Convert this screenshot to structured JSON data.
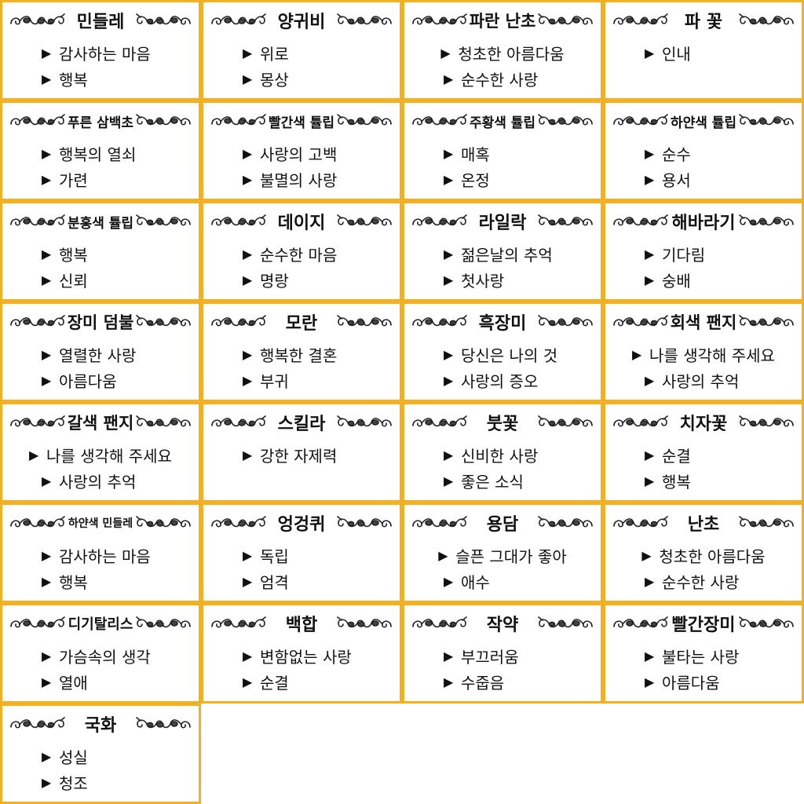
{
  "cards": [
    {
      "title": "민들레",
      "items": [
        "감사하는 마음",
        "행복"
      ]
    },
    {
      "title": "양귀비",
      "items": [
        "위로",
        "몽상"
      ]
    },
    {
      "title": "파란 난초",
      "items": [
        "청초한 아름다움",
        "순수한 사랑"
      ]
    },
    {
      "title": "파 꽃",
      "items": [
        "인내"
      ]
    },
    {
      "title": "푸른 삼백초",
      "items": [
        "행복의 열쇠",
        "가련"
      ]
    },
    {
      "title": "빨간색 튤립",
      "items": [
        "사랑의 고백",
        "불멸의 사랑"
      ]
    },
    {
      "title": "주황색 튤립",
      "items": [
        "매혹",
        "온정"
      ]
    },
    {
      "title": "하얀색 튤립",
      "items": [
        "순수",
        "용서"
      ]
    },
    {
      "title": "분홍색 튤립",
      "items": [
        "행복",
        "신뢰"
      ]
    },
    {
      "title": "데이지",
      "items": [
        "순수한 마음",
        "명랑"
      ]
    },
    {
      "title": "라일락",
      "items": [
        "젊은날의 추억",
        "첫사랑"
      ]
    },
    {
      "title": "해바라기",
      "items": [
        "기다림",
        "숭배"
      ]
    },
    {
      "title": "장미 덤불",
      "items": [
        "열렬한 사랑",
        "아름다움"
      ]
    },
    {
      "title": "모란",
      "items": [
        "행복한 결혼",
        "부귀"
      ]
    },
    {
      "title": "흑장미",
      "items": [
        "당신은 나의 것",
        "사랑의 증오"
      ]
    },
    {
      "title": "회색 팬지",
      "items": [
        "나를 생각해 주세요",
        "사랑의 추억"
      ]
    },
    {
      "title": "갈색 팬지",
      "items": [
        "나를 생각해 주세요",
        "사랑의 추억"
      ]
    },
    {
      "title": "스킬라",
      "items": [
        "강한 자제력"
      ]
    },
    {
      "title": "붓꽃",
      "items": [
        "신비한 사랑",
        "좋은 소식"
      ]
    },
    {
      "title": "치자꽃",
      "items": [
        "순결",
        "행복"
      ]
    },
    {
      "title": "하얀색 민들레",
      "items": [
        "감사하는 마음",
        "행복"
      ]
    },
    {
      "title": "엉겅퀴",
      "items": [
        "독립",
        "엄격"
      ]
    },
    {
      "title": "용담",
      "items": [
        "슬픈 그대가 좋아",
        "애수"
      ]
    },
    {
      "title": "난초",
      "items": [
        "청초한 아름다움",
        "순수한 사랑"
      ]
    },
    {
      "title": "디기탈리스",
      "items": [
        "가슴속의 생각",
        "열애"
      ]
    },
    {
      "title": "백합",
      "items": [
        "변함없는 사랑",
        "순결"
      ]
    },
    {
      "title": "작약",
      "items": [
        "부끄러움",
        "수줍음"
      ]
    },
    {
      "title": "빨간장미",
      "items": [
        "불타는 사랑",
        "아름다움"
      ]
    },
    {
      "title": "국화",
      "items": [
        "성실",
        "청조"
      ]
    }
  ],
  "bullet_glyph": "▶",
  "colors": {
    "border": "#f5b021",
    "text": "#111111",
    "background": "#ffffff"
  }
}
